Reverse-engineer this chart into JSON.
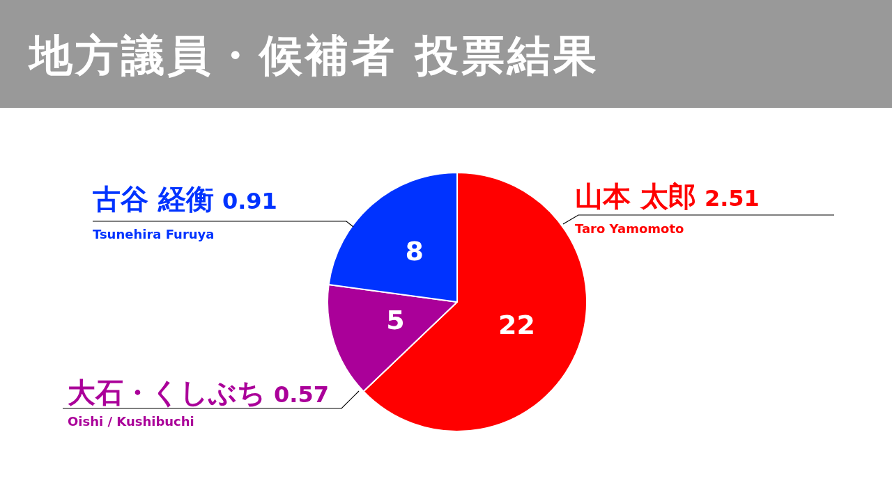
{
  "chart_data": {
    "type": "pie",
    "title": "地方議員・候補者 投票結果",
    "categories": [
      "山本 太郎",
      "大石・くしぶち",
      "古谷 経衡"
    ],
    "values": [
      22,
      5,
      8
    ],
    "colors": [
      "#ff0000",
      "#aa0099",
      "#0033ff"
    ],
    "data_labels": true,
    "legend": false,
    "annotations": [
      "2.51",
      "0.57",
      "0.91",
      "Taro Yamomoto",
      "Oishi / Kushibuchi",
      "Tsunehira Furuya"
    ]
  }
}
